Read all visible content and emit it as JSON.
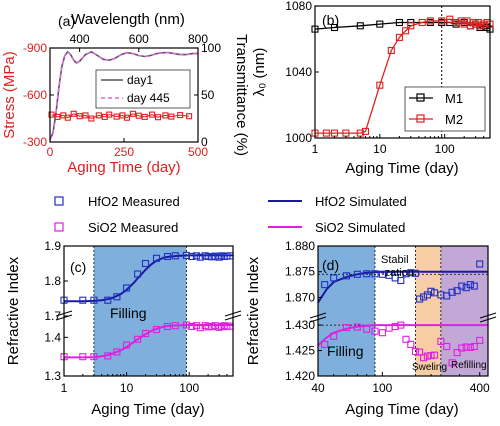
{
  "chart_data": [
    {
      "panel": "(a)",
      "type": "line",
      "xlabel": "Aging Time (day)",
      "ylabel": "Stress (MPa)",
      "x2label": "Wavelength (nm)",
      "y2label": "Transmittance (%)",
      "xlim": [
        0,
        500
      ],
      "xticks": [
        "0",
        "250",
        "500"
      ],
      "ylim": [
        -300,
        -900
      ],
      "yticks": [
        "-300",
        "-600",
        "-900"
      ],
      "x2lim": [
        300,
        800
      ],
      "x2ticks": [
        "400",
        "600",
        "800"
      ],
      "y2lim": [
        0,
        100
      ],
      "y2ticks": [
        "0",
        "50",
        "100"
      ],
      "series": [
        {
          "name": "day1",
          "axis": "secondary",
          "color": "#555555",
          "x": [
            300,
            310,
            320,
            330,
            340,
            350,
            360,
            370,
            380,
            390,
            400,
            420,
            440,
            460,
            480,
            500,
            520,
            540,
            560,
            580,
            600,
            620,
            640,
            660,
            680,
            700,
            720,
            740,
            760,
            780,
            800
          ],
          "y": [
            2,
            10,
            30,
            58,
            80,
            92,
            96,
            93,
            87,
            84,
            86,
            93,
            96,
            92,
            88,
            87,
            89,
            93,
            95,
            94,
            92,
            91,
            92,
            94,
            95,
            95,
            94,
            93,
            93,
            94,
            94
          ]
        },
        {
          "name": "day 445",
          "axis": "secondary",
          "color": "#dd66dd",
          "style": "dashed",
          "x": [
            300,
            310,
            320,
            330,
            340,
            350,
            360,
            370,
            380,
            390,
            400,
            420,
            440,
            460,
            480,
            500,
            520,
            540,
            560,
            580,
            600,
            620,
            640,
            660,
            680,
            700,
            720,
            740,
            760,
            780,
            800
          ],
          "y": [
            2,
            10,
            30,
            58,
            80,
            92,
            96,
            93,
            87,
            84,
            86,
            93,
            96,
            92,
            88,
            87,
            89,
            93,
            95,
            94,
            92,
            91,
            92,
            94,
            95,
            95,
            94,
            93,
            93,
            94,
            94
          ]
        },
        {
          "name": "",
          "axis": "primary",
          "color": "#e02020",
          "marker": "square",
          "x": [
            5,
            25,
            45,
            60,
            80,
            100,
            120,
            140,
            165,
            185,
            200,
            225,
            245,
            260,
            280,
            300,
            320,
            345,
            365,
            390,
            410,
            440,
            470
          ],
          "y": [
            -475,
            -460,
            -470,
            -455,
            -480,
            -465,
            -470,
            -450,
            -470,
            -460,
            -475,
            -462,
            -470,
            -455,
            -480,
            -468,
            -460,
            -475,
            -458,
            -470,
            -462,
            -472,
            -465
          ]
        }
      ]
    },
    {
      "panel": "(b)",
      "type": "line",
      "xlabel": "Aging Time (day)",
      "ylabel": "λ₀ (nm)",
      "xscale": "log",
      "xlim": [
        1,
        500
      ],
      "xticks": [
        "1",
        "10",
        "100"
      ],
      "ylim": [
        1000,
        1080
      ],
      "yticks": [
        "1000",
        "1040",
        "1080"
      ],
      "vline": 90,
      "legend": "bottom-right",
      "series": [
        {
          "name": "M1",
          "color": "#000000",
          "marker": "square",
          "x": [
            1,
            2,
            5,
            10,
            20,
            30,
            60,
            90,
            120,
            150,
            200,
            250,
            300,
            350,
            400,
            450,
            500
          ],
          "y": [
            1066,
            1067,
            1068,
            1069,
            1070,
            1070,
            1070,
            1070,
            1070,
            1069,
            1070,
            1068,
            1069,
            1067,
            1068,
            1067,
            1066
          ]
        },
        {
          "name": "M2",
          "color": "#e02020",
          "marker": "square",
          "x": [
            1,
            1.5,
            2,
            3,
            5,
            6,
            10,
            15,
            20,
            25,
            30,
            45,
            60,
            90,
            120,
            150,
            180,
            200,
            220,
            250,
            280,
            300,
            330,
            360,
            400,
            450,
            500
          ],
          "y": [
            1003,
            1003,
            1003,
            1003,
            1003,
            1004,
            1032,
            1053,
            1061,
            1065,
            1068,
            1070,
            1071,
            1071,
            1072,
            1070,
            1071,
            1069,
            1071,
            1068,
            1070,
            1069,
            1070,
            1068,
            1069,
            1070,
            1069
          ]
        }
      ]
    },
    {
      "panel": "(c)",
      "type": "line",
      "xlabel": "Aging Time (day)",
      "ylabel": "Refractive Index",
      "xscale": "log",
      "xlim": [
        1,
        500
      ],
      "xticks": [
        "1",
        "10",
        "100"
      ],
      "yticks": [
        "1.3",
        "1.4",
        "1.7",
        "1.8",
        "1.9"
      ],
      "y_break": [
        1.45,
        1.7
      ],
      "shaded": {
        "x": [
          3,
          90
        ],
        "label": "Filling"
      },
      "series": [
        {
          "name": "HfO2 Measured",
          "color": "#2030c0",
          "marker": "square",
          "x": [
            1,
            2,
            3,
            5,
            7,
            10,
            15,
            20,
            30,
            45,
            60,
            90,
            110,
            130,
            150,
            180,
            200,
            230,
            260,
            300,
            330,
            360,
            400,
            450
          ],
          "y": [
            1.745,
            1.745,
            1.745,
            1.745,
            1.755,
            1.78,
            1.82,
            1.85,
            1.865,
            1.87,
            1.872,
            1.873,
            1.87,
            1.872,
            1.868,
            1.872,
            1.87,
            1.869,
            1.871,
            1.868,
            1.872,
            1.87,
            1.871,
            1.872
          ]
        },
        {
          "name": "HfO2 Simulated",
          "color": "#1a1aa0",
          "x": [
            1,
            2,
            3,
            4,
            5,
            6,
            8,
            10,
            13,
            16,
            20,
            25,
            30,
            40,
            50,
            70,
            100,
            200,
            500
          ],
          "y": [
            1.742,
            1.742,
            1.743,
            1.745,
            1.748,
            1.752,
            1.762,
            1.775,
            1.795,
            1.813,
            1.832,
            1.848,
            1.858,
            1.867,
            1.87,
            1.872,
            1.873,
            1.873,
            1.873
          ]
        },
        {
          "name": "SiO2 Measured",
          "color": "#e020e0",
          "marker": "square",
          "x": [
            1,
            2,
            3,
            5,
            7,
            10,
            15,
            20,
            30,
            45,
            60,
            90,
            110,
            130,
            150,
            180,
            200,
            230,
            260,
            300,
            330,
            360,
            400,
            450
          ],
          "y": [
            1.35,
            1.35,
            1.35,
            1.352,
            1.362,
            1.38,
            1.395,
            1.41,
            1.42,
            1.428,
            1.43,
            1.432,
            1.428,
            1.43,
            1.425,
            1.43,
            1.427,
            1.428,
            1.43,
            1.426,
            1.428,
            1.43,
            1.428,
            1.429
          ]
        },
        {
          "name": "SiO2 Simulated",
          "color": "#e020e0",
          "x": [
            1,
            2,
            3,
            4,
            5,
            6,
            8,
            10,
            13,
            16,
            20,
            25,
            30,
            40,
            50,
            70,
            100,
            200,
            500
          ],
          "y": [
            1.348,
            1.348,
            1.349,
            1.351,
            1.354,
            1.358,
            1.366,
            1.375,
            1.388,
            1.398,
            1.408,
            1.417,
            1.422,
            1.428,
            1.43,
            1.431,
            1.432,
            1.432,
            1.432
          ]
        }
      ]
    },
    {
      "panel": "(d)",
      "type": "line",
      "xlabel": "Aging Time (day)",
      "ylabel": "Refractive Index",
      "xscale": "log",
      "xlim": [
        40,
        450
      ],
      "xticks": [
        "40",
        "100",
        "400"
      ],
      "yticks_upper": [
        "1.870",
        "1.875",
        "1.880"
      ],
      "yticks_lower": [
        "1.420",
        "1.425",
        "1.430"
      ],
      "y_break": [
        1.431,
        1.866
      ],
      "regions": [
        {
          "label": "Filling",
          "x": [
            40,
            90
          ],
          "color": "#7fb0dd"
        },
        {
          "label": "Stabil--zation",
          "x": [
            90,
            160
          ],
          "color": "#ffffff"
        },
        {
          "label": "Sweling",
          "x": [
            160,
            230
          ],
          "color": "#f6cda4"
        },
        {
          "label": "Refilling",
          "x": [
            230,
            450
          ],
          "color": "#c2a8d6"
        }
      ],
      "series": [
        {
          "name": "HfO2 Measured",
          "color": "#2030c0",
          "marker": "square",
          "x": [
            44,
            50,
            60,
            70,
            80,
            90,
            100,
            110,
            120,
            130,
            140,
            150,
            160,
            170,
            180,
            190,
            200,
            210,
            230,
            250,
            270,
            290,
            310,
            330,
            350,
            370,
            400
          ],
          "y": [
            1.8725,
            1.8738,
            1.8742,
            1.8745,
            1.8746,
            1.8746,
            1.8745,
            1.8743,
            1.8738,
            1.8733,
            1.8746,
            1.8748,
            1.8747,
            1.8697,
            1.8701,
            1.8705,
            1.8712,
            1.8709,
            1.8705,
            1.8703,
            1.871,
            1.8713,
            1.8722,
            1.8719,
            1.8725,
            1.8722,
            1.8765
          ]
        },
        {
          "name": "HfO2 Simulated",
          "color": "#1a1aa0",
          "x": [
            40,
            45,
            50,
            60,
            70,
            80,
            90,
            100,
            150,
            200,
            300,
            400,
            450
          ],
          "y": [
            1.869,
            1.8715,
            1.873,
            1.874,
            1.8745,
            1.8748,
            1.8749,
            1.875,
            1.875,
            1.875,
            1.875,
            1.875,
            1.875
          ]
        },
        {
          "name": "SiO2 Measured",
          "color": "#e020e0",
          "marker": "square",
          "x": [
            44,
            50,
            60,
            70,
            80,
            90,
            100,
            110,
            120,
            130,
            140,
            150,
            160,
            170,
            180,
            190,
            200,
            210,
            230,
            250,
            270,
            290,
            310,
            330,
            350,
            370,
            400
          ],
          "y": [
            1.4262,
            1.4278,
            1.4295,
            1.4296,
            1.4292,
            1.4288,
            1.4285,
            1.4294,
            1.4297,
            1.43,
            1.4272,
            1.4262,
            1.4248,
            1.4247,
            1.4236,
            1.4239,
            1.424,
            1.4241,
            1.4268,
            1.4258,
            1.4226,
            1.4246,
            1.4255,
            1.4257,
            1.4256,
            1.4258,
            1.427
          ]
        },
        {
          "name": "SiO2 Simulated",
          "color": "#e020e0",
          "x": [
            40,
            45,
            50,
            60,
            70,
            80,
            90,
            100,
            150,
            200,
            300,
            400,
            450
          ],
          "y": [
            1.426,
            1.4275,
            1.4285,
            1.4293,
            1.4297,
            1.4299,
            1.43,
            1.43,
            1.43,
            1.43,
            1.43,
            1.43,
            1.43
          ]
        }
      ]
    }
  ]
}
